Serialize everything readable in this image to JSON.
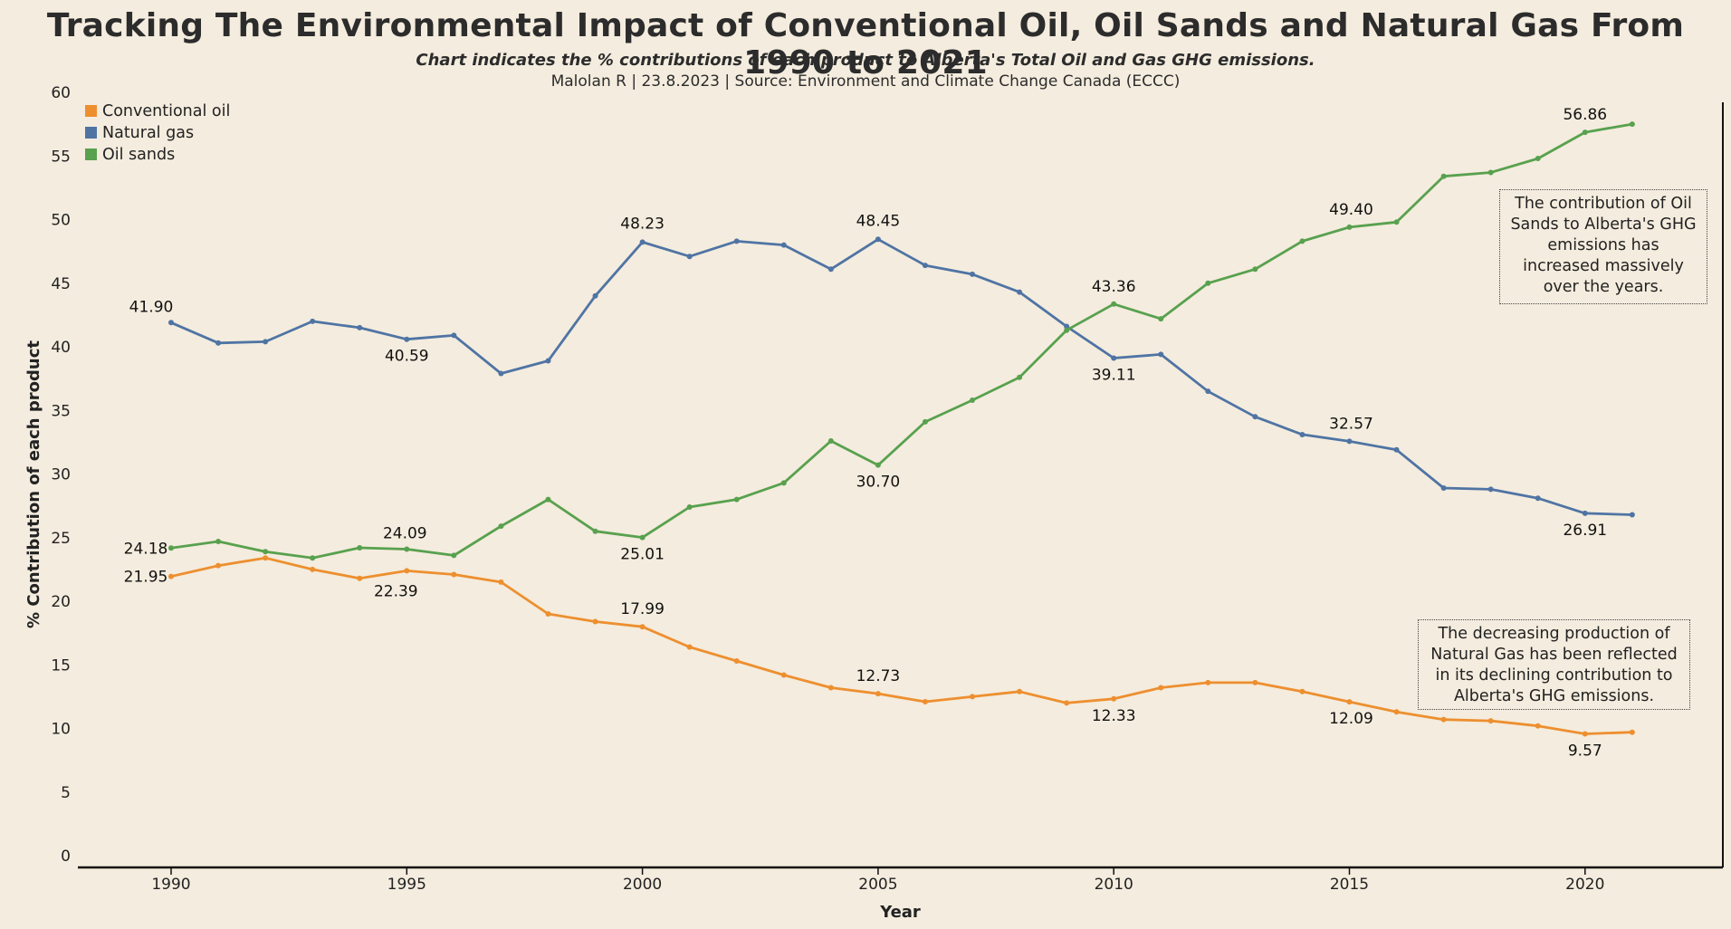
{
  "title": "Tracking The Environmental Impact of Conventional Oil, Oil Sands and Natural Gas From 1990 to 2021",
  "subtitle": "Chart indicates the % contributions of each product to Alberta's Total Oil and Gas GHG emissions.",
  "source": "Malolan R | 23.8.2023 | Source: Environment and Climate Change Canada (ECCC)",
  "annotations": [
    "The contribution of Oil Sands to Alberta's GHG emissions has increased massively over the years.",
    "The decreasing production of Natural Gas has been reflected in its declining contribution to Alberta's GHG emissions."
  ],
  "chart_data": {
    "type": "line",
    "xlabel": "Year",
    "ylabel": "% Contribution of each product",
    "xlim": [
      1988,
      2023
    ],
    "ylim": [
      0,
      60
    ],
    "xticks": [
      1990,
      1995,
      2000,
      2005,
      2010,
      2015,
      2020
    ],
    "yticks": [
      0,
      5,
      10,
      15,
      20,
      25,
      30,
      35,
      40,
      45,
      50,
      55,
      60
    ],
    "grid": false,
    "legend_position": "top-left",
    "x": [
      1990,
      1991,
      1992,
      1993,
      1994,
      1995,
      1996,
      1997,
      1998,
      1999,
      2000,
      2001,
      2002,
      2003,
      2004,
      2005,
      2006,
      2007,
      2008,
      2009,
      2010,
      2011,
      2012,
      2013,
      2014,
      2015,
      2016,
      2017,
      2018,
      2019,
      2020,
      2021
    ],
    "series": [
      {
        "name": "Conventional oil",
        "color": "#ed8f2f",
        "values": [
          21.95,
          22.8,
          23.4,
          22.5,
          21.8,
          22.39,
          22.1,
          21.5,
          19.0,
          18.4,
          17.99,
          16.4,
          15.3,
          14.2,
          13.2,
          12.73,
          12.1,
          12.5,
          12.9,
          12.0,
          12.33,
          13.2,
          13.6,
          13.6,
          12.9,
          12.09,
          11.3,
          10.7,
          10.6,
          10.2,
          9.57,
          9.7
        ],
        "labels": [
          {
            "x": 1990,
            "text": "21.95"
          },
          {
            "x": 1995,
            "text": "22.39"
          },
          {
            "x": 2000,
            "text": "17.99"
          },
          {
            "x": 2005,
            "text": "12.73"
          },
          {
            "x": 2010,
            "text": "12.33"
          },
          {
            "x": 2015,
            "text": "12.09"
          },
          {
            "x": 2020,
            "text": "9.57"
          }
        ]
      },
      {
        "name": "Natural gas",
        "color": "#4f74a4",
        "values": [
          41.9,
          40.3,
          40.4,
          42.0,
          41.5,
          40.59,
          40.9,
          37.9,
          38.9,
          44.0,
          48.23,
          47.1,
          48.3,
          48.0,
          46.1,
          48.45,
          46.4,
          45.7,
          44.3,
          41.6,
          39.11,
          39.4,
          36.5,
          34.5,
          33.1,
          32.57,
          31.9,
          28.9,
          28.8,
          28.1,
          26.91,
          26.8
        ],
        "labels": [
          {
            "x": 1990,
            "text": "41.90"
          },
          {
            "x": 1995,
            "text": "40.59"
          },
          {
            "x": 2000,
            "text": "48.23"
          },
          {
            "x": 2005,
            "text": "48.45"
          },
          {
            "x": 2010,
            "text": "39.11"
          },
          {
            "x": 2015,
            "text": "32.57"
          },
          {
            "x": 2020,
            "text": "26.91"
          }
        ]
      },
      {
        "name": "Oil sands",
        "color": "#58a14e",
        "values": [
          24.18,
          24.7,
          23.9,
          23.4,
          24.2,
          24.09,
          23.6,
          25.9,
          28.0,
          25.5,
          25.01,
          27.4,
          28.0,
          29.3,
          32.6,
          30.7,
          34.1,
          35.8,
          37.6,
          41.3,
          43.36,
          42.2,
          45.0,
          46.1,
          48.3,
          49.4,
          49.8,
          53.4,
          53.7,
          54.8,
          56.86,
          57.5
        ],
        "labels": [
          {
            "x": 1990,
            "text": "24.18"
          },
          {
            "x": 1995,
            "text": "24.09"
          },
          {
            "x": 2000,
            "text": "25.01"
          },
          {
            "x": 2005,
            "text": "30.70"
          },
          {
            "x": 2010,
            "text": "43.36"
          },
          {
            "x": 2015,
            "text": "49.40"
          },
          {
            "x": 2020,
            "text": "56.86"
          }
        ]
      }
    ]
  }
}
